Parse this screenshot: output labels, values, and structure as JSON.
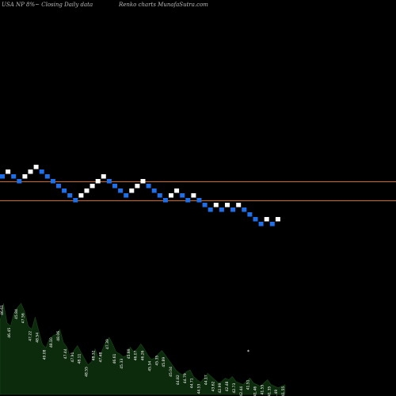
{
  "header": {
    "left": "USA NP 8%~ Closing Daily data",
    "right": "Renko charts MunafaSutra.com"
  },
  "colors": {
    "background": "#000000",
    "up_brick": "#ffffff",
    "down_brick": "#1f6fe8",
    "reference_line": "#d26a1a",
    "volume_fill": "#0c2a0c",
    "volume_label": "#ffffff"
  },
  "chart_data": {
    "type": "renko",
    "brick_size": 1,
    "bricks": [
      {
        "dir": "down",
        "value": 20
      },
      {
        "dir": "up",
        "value": 21
      },
      {
        "dir": "down",
        "value": 20
      },
      {
        "dir": "down",
        "value": 19
      },
      {
        "dir": "up",
        "value": 20
      },
      {
        "dir": "up",
        "value": 21
      },
      {
        "dir": "up",
        "value": 22
      },
      {
        "dir": "down",
        "value": 21
      },
      {
        "dir": "down",
        "value": 20
      },
      {
        "dir": "down",
        "value": 19
      },
      {
        "dir": "down",
        "value": 18
      },
      {
        "dir": "down",
        "value": 17
      },
      {
        "dir": "down",
        "value": 16
      },
      {
        "dir": "down",
        "value": 15
      },
      {
        "dir": "up",
        "value": 16
      },
      {
        "dir": "up",
        "value": 17
      },
      {
        "dir": "up",
        "value": 18
      },
      {
        "dir": "up",
        "value": 19
      },
      {
        "dir": "up",
        "value": 20
      },
      {
        "dir": "down",
        "value": 19
      },
      {
        "dir": "down",
        "value": 18
      },
      {
        "dir": "down",
        "value": 17
      },
      {
        "dir": "down",
        "value": 16
      },
      {
        "dir": "up",
        "value": 17
      },
      {
        "dir": "up",
        "value": 18
      },
      {
        "dir": "up",
        "value": 19
      },
      {
        "dir": "down",
        "value": 18
      },
      {
        "dir": "down",
        "value": 17
      },
      {
        "dir": "down",
        "value": 16
      },
      {
        "dir": "down",
        "value": 15
      },
      {
        "dir": "up",
        "value": 16
      },
      {
        "dir": "up",
        "value": 17
      },
      {
        "dir": "down",
        "value": 16
      },
      {
        "dir": "down",
        "value": 15
      },
      {
        "dir": "up",
        "value": 16
      },
      {
        "dir": "down",
        "value": 15
      },
      {
        "dir": "down",
        "value": 14
      },
      {
        "dir": "down",
        "value": 13
      },
      {
        "dir": "up",
        "value": 14
      },
      {
        "dir": "down",
        "value": 13
      },
      {
        "dir": "up",
        "value": 14
      },
      {
        "dir": "down",
        "value": 13
      },
      {
        "dir": "up",
        "value": 14
      },
      {
        "dir": "down",
        "value": 13
      },
      {
        "dir": "down",
        "value": 12
      },
      {
        "dir": "down",
        "value": 11
      },
      {
        "dir": "down",
        "value": 10
      },
      {
        "dir": "up",
        "value": 11
      },
      {
        "dir": "down",
        "value": 10
      },
      {
        "dir": "up",
        "value": 11
      }
    ],
    "volume_profile": [
      90,
      112,
      88,
      84,
      100,
      107,
      112,
      102,
      84,
      80,
      95,
      78,
      62,
      57,
      68,
      72,
      74,
      80,
      64,
      58,
      46,
      54,
      60,
      52,
      44,
      36,
      40,
      56,
      44,
      54,
      64,
      70,
      62,
      52,
      50,
      46,
      48,
      58,
      52,
      56,
      62,
      56,
      48,
      43,
      45,
      50,
      54,
      48,
      42,
      36,
      30,
      26,
      24,
      28,
      30,
      22,
      18,
      15,
      20,
      26,
      22,
      18,
      14,
      16,
      20,
      18,
      22,
      16,
      14,
      12,
      16,
      20,
      14,
      12,
      10,
      14,
      18,
      12,
      10,
      8,
      10,
      12
    ],
    "volume_labels": [
      "46.61",
      "46.45",
      "45.84",
      "47.56",
      "47.22",
      "48.54",
      "49.08",
      "48.10",
      "48.06",
      "47.44",
      "47.91",
      "48.11",
      "48.55",
      "48.32",
      "47.48",
      "47.39",
      "46.61",
      "45.33",
      "45.89",
      "46.07",
      "46.26",
      "45.54",
      "45.35",
      "45.89",
      "45.04",
      "44.82",
      "44.79",
      "44.71",
      "44.53",
      "44.17",
      "43.62",
      "42.99",
      "42.48",
      "42.73",
      "42.44",
      "41.51",
      "41.46",
      "41.55",
      "41.35",
      "41.49",
      "41.55"
    ],
    "volume_marker": "*"
  }
}
